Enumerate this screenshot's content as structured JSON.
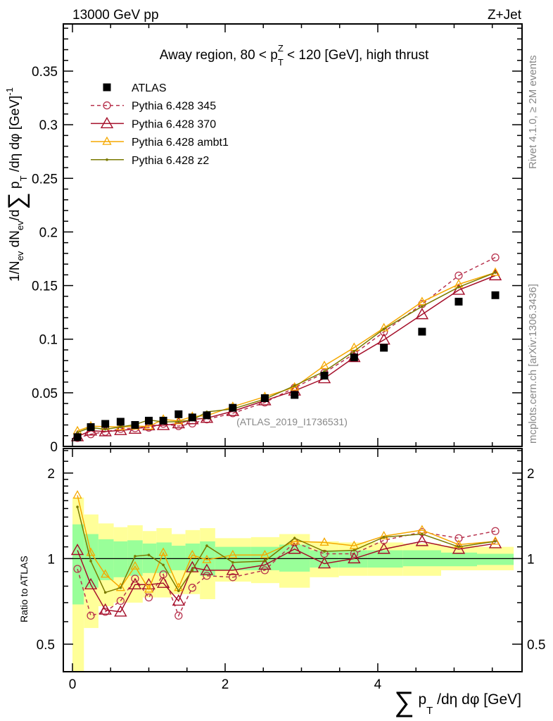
{
  "chart_data": {
    "type": "scatter",
    "header_left": "13000 GeV pp",
    "header_right": "Z+Jet",
    "title_parts": {
      "pre": "Away region, 80 < p",
      "sub": "T",
      "sup": "Z",
      "post": " < 120 [GeV], high thrust"
    },
    "ylabel_parts": {
      "a": "1/N",
      "a_sub": "ev",
      "b": " dN",
      "b_sub": "ev",
      "c": "/d",
      "sum": "∑",
      "d": " p",
      "d_sub": "T",
      "e": " /dη dφ  [GeV]",
      "e_sup": "-1"
    },
    "xlabel_parts": {
      "sum": "∑",
      "a": " p",
      "a_sub": "T",
      "b": " /dη dφ [GeV]"
    },
    "ratio_ylabel": "Ratio to ATLAS",
    "watermark": "(ATLAS_2019_I1736531)",
    "side_text_top": "Rivet 4.1.0, ≥ 2M events",
    "side_text_bottom": "mcplots.cern.ch [arXiv:1306.3436]",
    "xlim": [
      -0.12,
      5.89
    ],
    "ylim": [
      0,
      0.394
    ],
    "ratio_ylim": [
      0.4,
      2.44
    ],
    "ratio_scale": "log",
    "x_ticks": [
      "0",
      "2",
      "4"
    ],
    "y_ticks": [
      "0",
      "0.05",
      "0.1",
      "0.15",
      "0.2",
      "0.25",
      "0.3",
      "0.35"
    ],
    "ratio_ticks": [
      "0.5",
      "1",
      "2"
    ],
    "legend_position": "top-left",
    "x": [
      0.065,
      0.24,
      0.43,
      0.63,
      0.82,
      1.0,
      1.19,
      1.39,
      1.57,
      1.76,
      2.1,
      2.52,
      2.91,
      3.3,
      3.69,
      4.08,
      4.58,
      5.06,
      5.54
    ],
    "bin_edges": [
      0,
      0.15,
      0.34,
      0.54,
      0.72,
      0.92,
      1.1,
      1.3,
      1.48,
      1.67,
      1.87,
      2.34,
      2.71,
      3.11,
      3.49,
      3.87,
      4.33,
      4.83,
      5.3,
      5.78
    ],
    "data": {
      "name": "ATLAS",
      "values": [
        0.0086,
        0.018,
        0.021,
        0.023,
        0.02,
        0.024,
        0.024,
        0.03,
        0.027,
        0.029,
        0.036,
        0.045,
        0.048,
        0.066,
        0.083,
        0.092,
        0.107,
        0.135,
        0.141
      ],
      "color": "#000000"
    },
    "bands": {
      "stat_hi": [
        1.32,
        1.22,
        1.17,
        1.15,
        1.16,
        1.13,
        1.14,
        1.11,
        1.13,
        1.15,
        1.1,
        1.1,
        1.12,
        1.07,
        1.07,
        1.07,
        1.07,
        1.05,
        1.04
      ],
      "stat_lo": [
        0.69,
        0.79,
        0.84,
        0.86,
        0.87,
        0.89,
        0.89,
        0.91,
        0.9,
        0.87,
        0.91,
        0.91,
        0.9,
        0.93,
        0.93,
        0.93,
        0.94,
        0.94,
        0.95
      ],
      "total_hi": [
        1.64,
        1.43,
        1.33,
        1.29,
        1.31,
        1.25,
        1.28,
        1.22,
        1.26,
        1.28,
        1.18,
        1.19,
        1.22,
        1.15,
        1.14,
        1.14,
        1.13,
        1.11,
        1.1
      ],
      "total_lo": [
        0.4,
        0.57,
        0.68,
        0.7,
        0.7,
        0.73,
        0.73,
        0.75,
        0.75,
        0.72,
        0.83,
        0.82,
        0.79,
        0.86,
        0.87,
        0.87,
        0.87,
        0.91,
        0.91
      ],
      "stat_color": "#99ff99",
      "total_color": "#ffff99"
    },
    "series": [
      {
        "name": "Pythia 6.428 345",
        "color": "#b8344f",
        "dashed": true,
        "marker": "circle",
        "ratio": [
          0.92,
          0.63,
          0.65,
          0.71,
          0.85,
          0.73,
          0.88,
          0.63,
          0.79,
          0.87,
          0.86,
          0.91,
          1.14,
          1.04,
          1.04,
          1.16,
          1.24,
          1.18,
          1.25
        ]
      },
      {
        "name": "Pythia 6.428 370",
        "color": "#a50f2a",
        "dashed": false,
        "marker": "triangle-large",
        "ratio": [
          1.07,
          0.81,
          0.66,
          0.65,
          0.81,
          0.81,
          0.82,
          0.71,
          0.93,
          0.91,
          0.91,
          0.95,
          1.08,
          0.96,
          1.0,
          1.08,
          1.15,
          1.08,
          1.13
        ]
      },
      {
        "name": "Pythia 6.428 ambt1",
        "color": "#f5a800",
        "dashed": false,
        "marker": "triangle",
        "ratio": [
          1.67,
          1.05,
          0.88,
          0.79,
          0.94,
          0.78,
          1.05,
          0.79,
          1.03,
          0.99,
          1.03,
          1.03,
          1.15,
          1.14,
          1.11,
          1.2,
          1.26,
          1.12,
          1.15
        ]
      },
      {
        "name": "Pythia 6.428 z2",
        "color": "#7a7a00",
        "dashed": false,
        "marker": "dot",
        "ratio": [
          1.52,
          0.98,
          0.76,
          0.79,
          1.02,
          1.03,
          0.95,
          0.77,
          0.91,
          1.11,
          0.97,
          0.98,
          1.18,
          1.06,
          1.07,
          1.19,
          1.22,
          1.1,
          1.15
        ]
      }
    ]
  }
}
